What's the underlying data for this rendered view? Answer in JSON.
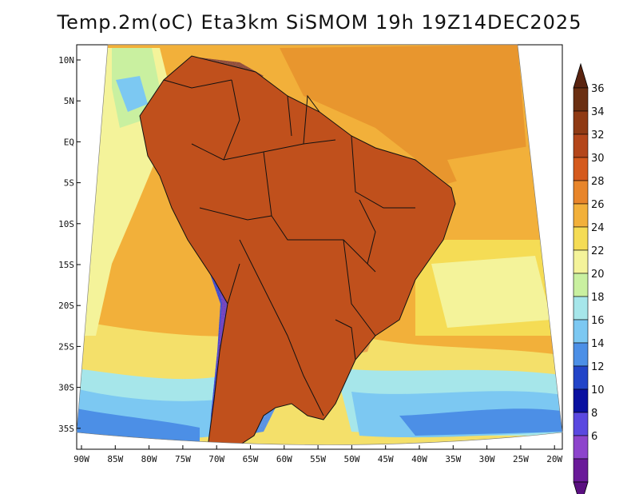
{
  "title": "Temp.2m(oC) Eta3km SiSMOM 19h 19Z14DEC2025",
  "lat_labels": [
    "10N",
    "5N",
    "EQ",
    "5S",
    "10S",
    "15S",
    "20S",
    "25S",
    "30S",
    "35S"
  ],
  "lon_labels": [
    "90W",
    "85W",
    "80W",
    "75W",
    "70W",
    "65W",
    "60W",
    "55W",
    "50W",
    "45W",
    "40W",
    "35W",
    "30W",
    "25W",
    "20W"
  ],
  "colorbar": {
    "labels": [
      "36",
      "34",
      "32",
      "30",
      "28",
      "26",
      "24",
      "22",
      "20",
      "18",
      "16",
      "14",
      "12",
      "10",
      "8",
      "6"
    ],
    "colors": [
      "#6b2f12",
      "#8f3a14",
      "#b4461a",
      "#d55a1d",
      "#e8852a",
      "#f2b03a",
      "#f5dc55",
      "#f4f39a",
      "#c9f0a0",
      "#a6e6ea",
      "#7cc8f2",
      "#4c8fe6",
      "#2244c8",
      "#0a10a0",
      "#5a48e0",
      "#8d44cc",
      "#6a1a99"
    ],
    "top_arrow_color": "#5a2410",
    "bottom_arrow_color": "#5a1080"
  }
}
